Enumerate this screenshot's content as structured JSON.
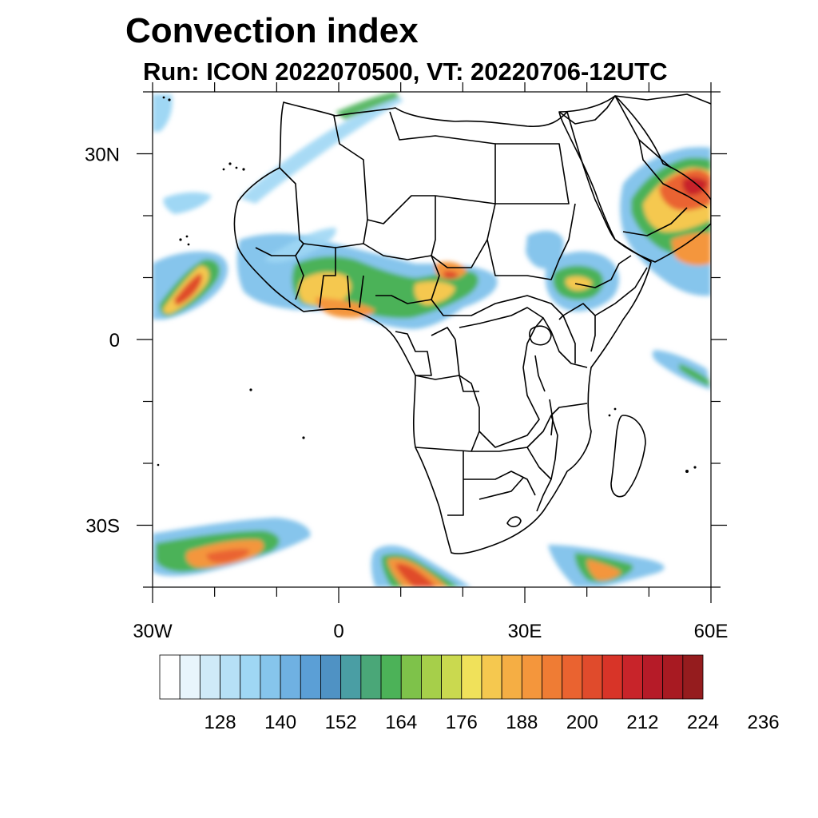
{
  "title": "Convection index",
  "subtitle": "Run: ICON 2022070500,  VT: 20220706-12UTC",
  "map": {
    "lon_range": [
      -30,
      60
    ],
    "lat_range": [
      -40,
      40
    ],
    "x_ticks": [
      {
        "lon": -30,
        "label": "30W"
      },
      {
        "lon": 0,
        "label": "0"
      },
      {
        "lon": 30,
        "label": "30E"
      },
      {
        "lon": 60,
        "label": "60E"
      }
    ],
    "y_ticks": [
      {
        "lat": 30,
        "label": "30N"
      },
      {
        "lat": 0,
        "label": "0"
      },
      {
        "lat": -30,
        "label": "30S"
      }
    ]
  },
  "colorbar": {
    "colors": [
      "#ffffff",
      "#e8f5fc",
      "#cfeaf8",
      "#b6e0f6",
      "#9fd7f4",
      "#86c5ec",
      "#6fb1e2",
      "#5b9fd6",
      "#4f92c4",
      "#4a9ea4",
      "#4aa778",
      "#4cb258",
      "#7ec24a",
      "#a6cf4a",
      "#cad94f",
      "#f0e15a",
      "#f5c84f",
      "#f5ae44",
      "#f4963c",
      "#ef7c34",
      "#ea6330",
      "#e04b2c",
      "#d83428",
      "#c8242a",
      "#b61b28",
      "#a81a22",
      "#951c1e"
    ],
    "labels": [
      "128",
      "140",
      "152",
      "164",
      "176",
      "188",
      "200",
      "212",
      "224",
      "236"
    ]
  }
}
